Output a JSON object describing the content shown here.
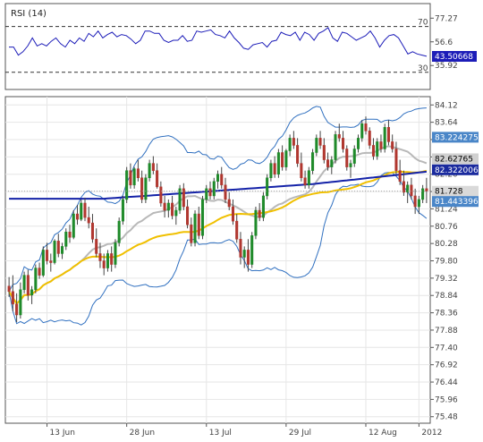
{
  "chart_data": [
    {
      "type": "line",
      "panel": "rsi",
      "title": "RSI (14)",
      "yticks": [
        77.27,
        56.6,
        35.92
      ],
      "ylim": [
        15.0,
        90.0
      ],
      "reference_lines": [
        {
          "value": 70,
          "label": "70"
        },
        {
          "value": 30,
          "label": "30"
        }
      ],
      "grid": true,
      "last_value_label": "43.50668",
      "colors": {
        "line": "#1c1cb8",
        "label_bg": "#1c1cb8"
      },
      "series": [
        {
          "values": [
            52,
            52,
            45,
            48,
            53,
            60,
            53,
            55,
            53,
            57,
            60,
            55,
            52,
            58,
            55,
            60,
            57,
            64,
            61,
            66,
            60,
            63,
            65,
            61,
            63,
            62,
            59,
            55,
            58,
            66,
            66,
            64,
            64,
            58,
            56,
            58,
            58,
            62,
            57,
            58,
            66,
            65,
            66,
            67,
            63,
            62,
            60,
            66,
            60,
            56,
            51,
            50,
            54,
            55,
            56,
            52,
            57,
            58,
            65,
            63,
            62,
            65,
            58,
            65,
            63,
            58,
            64,
            66,
            69,
            60,
            57,
            65,
            64,
            61,
            58,
            60,
            62,
            66,
            60,
            52,
            58,
            62,
            63,
            60,
            53,
            46,
            48,
            46,
            45,
            44
          ]
        }
      ]
    },
    {
      "type": "candlestick",
      "panel": "price",
      "yticks": [
        "84.12",
        "83.64",
        "83.16",
        "82.68",
        "82.20",
        "81.72",
        "81.24",
        "80.76",
        "80.28",
        "79.80",
        "79.32",
        "78.84",
        "78.36",
        "77.88",
        "77.40",
        "76.92",
        "76.44",
        "75.96",
        "75.48"
      ],
      "ylim": [
        75.3,
        84.35
      ],
      "xticks": [
        {
          "i": 10,
          "label": "13 Jun"
        },
        {
          "i": 31,
          "label": "28 Jun"
        },
        {
          "i": 52,
          "label": "13 Jul"
        },
        {
          "i": 73,
          "label": "29 Jul"
        },
        {
          "i": 94,
          "label": "12 Aug"
        },
        {
          "i": 108,
          "label": "2012"
        }
      ],
      "value_labels": [
        {
          "value": 83.224275,
          "text": "83.224275",
          "bg": "#4a86c8",
          "fg": "#ffffff"
        },
        {
          "value": 82.62765,
          "text": "82.62765",
          "bg": "#d0d0d0",
          "fg": "#000000"
        },
        {
          "value": 82.322006,
          "text": "82.322006",
          "bg": "#1a2a9e",
          "fg": "#ffffff"
        },
        {
          "value": 81.728,
          "text": "81.728",
          "bg": "#d9d9d9",
          "fg": "#000000"
        },
        {
          "value": 81.443396,
          "text": "81.443396",
          "bg": "#4a86c8",
          "fg": "#ffffff"
        }
      ],
      "colors": {
        "up": "#1f8a2a",
        "down": "#b0372f",
        "ma_long": "#1422a8",
        "ma_mid": "#f0c000",
        "ma_short": "#b8b8b8",
        "bands": "#3070c0"
      },
      "bar_count": 111,
      "ohlc": [
        [
          79.1,
          79.35,
          78.8,
          78.95
        ],
        [
          78.95,
          79.4,
          78.4,
          78.6
        ],
        [
          78.6,
          78.9,
          78.1,
          78.3
        ],
        [
          78.3,
          79.2,
          78.2,
          79.0
        ],
        [
          79.0,
          79.5,
          78.9,
          79.4
        ],
        [
          79.4,
          79.55,
          78.7,
          78.85
        ],
        [
          78.85,
          79.1,
          78.6,
          79.0
        ],
        [
          79.0,
          79.7,
          78.9,
          79.6
        ],
        [
          79.6,
          79.75,
          79.3,
          79.4
        ],
        [
          79.4,
          80.2,
          79.35,
          80.1
        ],
        [
          80.1,
          80.3,
          79.7,
          79.8
        ],
        [
          79.8,
          80.0,
          79.5,
          79.75
        ],
        [
          79.75,
          80.4,
          79.7,
          80.35
        ],
        [
          80.35,
          80.55,
          79.9,
          80.0
        ],
        [
          80.0,
          80.3,
          79.85,
          80.2
        ],
        [
          80.2,
          80.7,
          80.1,
          80.6
        ],
        [
          80.6,
          80.8,
          80.3,
          80.45
        ],
        [
          80.45,
          81.2,
          80.4,
          81.1
        ],
        [
          81.1,
          81.35,
          80.8,
          80.95
        ],
        [
          80.95,
          81.5,
          80.9,
          81.4
        ],
        [
          81.4,
          81.55,
          80.9,
          81.0
        ],
        [
          81.0,
          81.3,
          80.7,
          80.85
        ],
        [
          80.85,
          81.1,
          80.3,
          80.4
        ],
        [
          80.4,
          80.7,
          79.9,
          80.0
        ],
        [
          80.0,
          80.3,
          79.6,
          79.8
        ],
        [
          79.8,
          80.0,
          79.4,
          79.6
        ],
        [
          79.6,
          80.1,
          79.5,
          80.0
        ],
        [
          80.0,
          80.2,
          79.5,
          79.7
        ],
        [
          79.7,
          80.4,
          79.6,
          80.3
        ],
        [
          80.3,
          81.0,
          80.2,
          80.9
        ],
        [
          80.9,
          81.6,
          80.8,
          81.5
        ],
        [
          81.5,
          82.4,
          81.4,
          82.3
        ],
        [
          82.3,
          82.5,
          81.8,
          81.9
        ],
        [
          81.9,
          82.4,
          81.8,
          82.35
        ],
        [
          82.35,
          82.6,
          82.0,
          82.1
        ],
        [
          82.1,
          82.3,
          81.4,
          81.5
        ],
        [
          81.5,
          82.2,
          81.4,
          82.1
        ],
        [
          82.1,
          82.6,
          82.0,
          82.5
        ],
        [
          82.5,
          82.7,
          82.2,
          82.3
        ],
        [
          82.3,
          82.5,
          81.8,
          81.85
        ],
        [
          81.85,
          82.0,
          81.3,
          81.4
        ],
        [
          81.4,
          81.6,
          81.0,
          81.2
        ],
        [
          81.2,
          81.5,
          81.0,
          81.4
        ],
        [
          81.4,
          81.6,
          80.95,
          81.05
        ],
        [
          81.05,
          81.3,
          80.8,
          81.2
        ],
        [
          81.2,
          81.9,
          81.1,
          81.8
        ],
        [
          81.8,
          81.95,
          81.2,
          81.3
        ],
        [
          81.3,
          81.5,
          80.7,
          80.8
        ],
        [
          80.8,
          81.0,
          80.2,
          80.3
        ],
        [
          80.3,
          81.2,
          80.2,
          81.1
        ],
        [
          81.1,
          81.3,
          80.4,
          80.5
        ],
        [
          80.5,
          81.6,
          80.4,
          81.5
        ],
        [
          81.5,
          81.9,
          81.4,
          81.8
        ],
        [
          81.8,
          82.0,
          81.5,
          81.6
        ],
        [
          81.6,
          82.1,
          81.5,
          82.0
        ],
        [
          82.0,
          82.3,
          81.8,
          82.2
        ],
        [
          82.2,
          82.4,
          81.8,
          81.9
        ],
        [
          81.9,
          82.1,
          81.4,
          81.5
        ],
        [
          81.5,
          81.7,
          81.2,
          81.3
        ],
        [
          81.3,
          81.5,
          80.8,
          80.9
        ],
        [
          80.9,
          81.1,
          80.3,
          80.4
        ],
        [
          80.4,
          80.6,
          79.7,
          79.9
        ],
        [
          79.9,
          80.2,
          79.6,
          80.1
        ],
        [
          80.1,
          80.4,
          79.5,
          79.7
        ],
        [
          79.7,
          80.6,
          79.6,
          80.5
        ],
        [
          80.5,
          81.3,
          80.4,
          81.2
        ],
        [
          81.2,
          81.4,
          80.9,
          81.0
        ],
        [
          81.0,
          81.7,
          80.9,
          81.6
        ],
        [
          81.6,
          82.2,
          81.5,
          82.1
        ],
        [
          82.1,
          82.6,
          82.0,
          82.5
        ],
        [
          82.5,
          82.7,
          82.1,
          82.2
        ],
        [
          82.2,
          82.9,
          82.1,
          82.8
        ],
        [
          82.8,
          83.0,
          82.3,
          82.4
        ],
        [
          82.4,
          82.9,
          82.3,
          82.85
        ],
        [
          82.85,
          83.3,
          82.7,
          83.2
        ],
        [
          83.2,
          83.4,
          82.9,
          83.0
        ],
        [
          83.0,
          83.2,
          82.4,
          82.5
        ],
        [
          82.5,
          82.8,
          82.0,
          82.1
        ],
        [
          82.1,
          82.3,
          81.8,
          81.9
        ],
        [
          81.9,
          82.4,
          81.8,
          82.3
        ],
        [
          82.3,
          82.9,
          82.2,
          82.8
        ],
        [
          82.8,
          83.3,
          82.7,
          83.2
        ],
        [
          83.2,
          83.4,
          82.9,
          83.0
        ],
        [
          83.0,
          83.2,
          82.5,
          82.6
        ],
        [
          82.6,
          82.8,
          82.3,
          82.4
        ],
        [
          82.4,
          82.7,
          82.2,
          82.6
        ],
        [
          82.6,
          83.4,
          82.5,
          83.3
        ],
        [
          83.3,
          83.6,
          83.1,
          83.2
        ],
        [
          83.2,
          83.4,
          82.8,
          82.9
        ],
        [
          82.9,
          83.0,
          82.3,
          82.4
        ],
        [
          82.4,
          82.6,
          82.1,
          82.5
        ],
        [
          82.5,
          83.0,
          82.4,
          82.9
        ],
        [
          82.9,
          83.3,
          82.8,
          83.2
        ],
        [
          83.2,
          83.7,
          83.1,
          83.6
        ],
        [
          83.6,
          83.8,
          83.3,
          83.4
        ],
        [
          83.4,
          83.5,
          82.9,
          83.0
        ],
        [
          83.0,
          83.2,
          82.6,
          82.7
        ],
        [
          82.7,
          83.2,
          82.6,
          83.1
        ],
        [
          83.1,
          83.3,
          82.8,
          82.9
        ],
        [
          82.9,
          83.6,
          82.8,
          83.5
        ],
        [
          83.5,
          83.7,
          83.0,
          83.1
        ],
        [
          83.1,
          83.3,
          82.8,
          82.9
        ],
        [
          82.9,
          83.1,
          82.2,
          82.3
        ],
        [
          82.3,
          82.6,
          81.9,
          82.0
        ],
        [
          82.0,
          82.3,
          81.6,
          81.7
        ],
        [
          81.7,
          82.0,
          81.4,
          81.9
        ],
        [
          81.9,
          82.1,
          81.5,
          81.6
        ],
        [
          81.6,
          81.8,
          81.1,
          81.3
        ],
        [
          81.3,
          81.6,
          81.1,
          81.5
        ],
        [
          81.5,
          81.9,
          81.4,
          81.8
        ],
        [
          81.8,
          82.1,
          81.4,
          81.73
        ]
      ]
    }
  ]
}
